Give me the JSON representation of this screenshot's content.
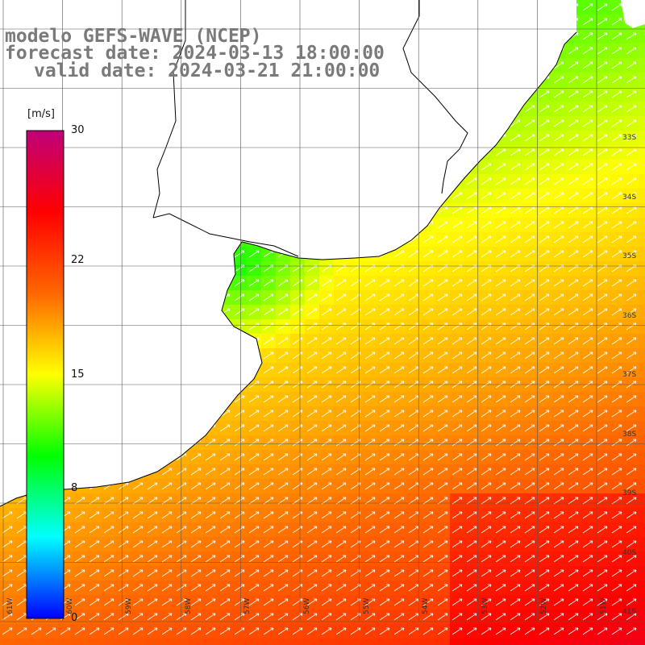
{
  "title": {
    "model": "modelo GEFS-WAVE (NCEP)",
    "forecast": "forecast date: 2024-03-13 18:00:00",
    "valid": "valid date: 2024-03-21 21:00:00"
  },
  "colorbar": {
    "units": "[m/s]",
    "ticks": [
      {
        "label": "30",
        "value": 30
      },
      {
        "label": "22",
        "value": 22
      },
      {
        "label": "15",
        "value": 15
      },
      {
        "label": "8",
        "value": 8
      },
      {
        "label": "0",
        "value": 0
      }
    ],
    "min": 0,
    "max": 30,
    "colors": [
      "#0000ff",
      "#00ffff",
      "#00ff00",
      "#ffff00",
      "#ff6600",
      "#ff0000",
      "#c0007a"
    ]
  },
  "lat_labels": [
    "33S",
    "34S",
    "35S",
    "36S",
    "37S",
    "38S",
    "39S",
    "40S",
    "41S"
  ],
  "lon_labels": [
    "61W",
    "60W",
    "59W",
    "58W",
    "57W",
    "56W",
    "55W",
    "54W",
    "53W",
    "52W",
    "51W"
  ],
  "colors": {
    "land": "#ffffff",
    "coast": "#000000",
    "grid": "#555555",
    "arrow": "#ffffff"
  }
}
